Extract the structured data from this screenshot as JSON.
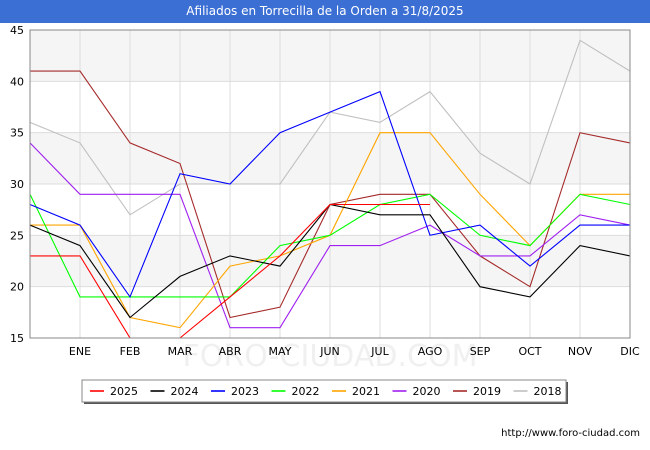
{
  "header": {
    "title": "Afiliados en Torrecilla de la Orden a 31/8/2025"
  },
  "footer": {
    "url": "http://www.foro-ciudad.com"
  },
  "watermark": "FORO-CIUDAD.COM",
  "chart_data": {
    "type": "line",
    "title": "Afiliados en Torrecilla de la Orden a 31/8/2025",
    "xlabel": "",
    "ylabel": "",
    "categories": [
      "",
      "ENE",
      "FEB",
      "MAR",
      "ABR",
      "MAY",
      "JUN",
      "JUL",
      "AGO",
      "SEP",
      "OCT",
      "NOV",
      "DIC"
    ],
    "ylim": [
      15,
      45
    ],
    "yticks": [
      15,
      20,
      25,
      30,
      35,
      40,
      45
    ],
    "legend_position": "bottom",
    "series": [
      {
        "name": "2018",
        "color": "#c0c0c0",
        "values": [
          36,
          34,
          27,
          30,
          30,
          30,
          37,
          36,
          39,
          33,
          30,
          44,
          41
        ]
      },
      {
        "name": "2019",
        "color": "#a52a2a",
        "values": [
          41,
          41,
          34,
          32,
          17,
          18,
          28,
          29,
          29,
          23,
          20,
          35,
          34
        ]
      },
      {
        "name": "2020",
        "color": "#a020f0",
        "values": [
          34,
          29,
          29,
          29,
          16,
          16,
          24,
          24,
          26,
          23,
          23,
          27,
          26
        ]
      },
      {
        "name": "2021",
        "color": "#ffa500",
        "values": [
          26,
          26,
          17,
          16,
          22,
          23,
          25,
          35,
          35,
          29,
          24,
          29,
          29
        ]
      },
      {
        "name": "2022",
        "color": "#00ff00",
        "values": [
          29,
          19,
          19,
          19,
          19,
          24,
          25,
          28,
          29,
          25,
          24,
          29,
          28
        ]
      },
      {
        "name": "2023",
        "color": "#0000ff",
        "values": [
          28,
          26,
          19,
          31,
          30,
          35,
          37,
          39,
          25,
          26,
          22,
          26,
          26
        ]
      },
      {
        "name": "2024",
        "color": "#000000",
        "values": [
          26,
          24,
          17,
          21,
          23,
          22,
          28,
          27,
          27,
          20,
          19,
          24,
          23
        ]
      },
      {
        "name": "2025",
        "color": "#ff0000",
        "values": [
          23,
          23,
          15,
          15,
          19,
          23,
          28,
          28,
          28,
          null,
          null,
          null,
          null
        ]
      }
    ],
    "legend_order": [
      "2025",
      "2024",
      "2023",
      "2022",
      "2021",
      "2020",
      "2019",
      "2018"
    ]
  }
}
